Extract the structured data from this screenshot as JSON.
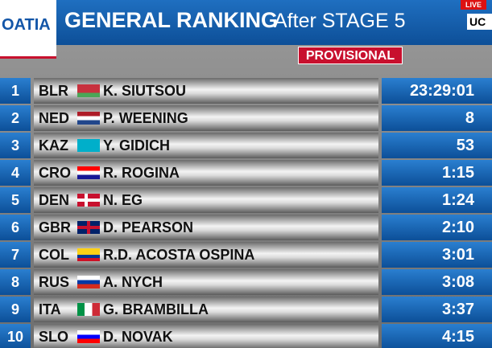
{
  "header": {
    "logo": "OATIA",
    "title": "GENERAL RANKING",
    "subtitle": "After STAGE 5",
    "live": "LIVE",
    "uci": "UC",
    "status": "PROVISIONAL"
  },
  "table": {
    "rows": [
      [
        "1",
        "BLR",
        "K. SIUTSOU",
        "23:29:01"
      ],
      [
        "2",
        "NED",
        "P. WEENING",
        "8"
      ],
      [
        "3",
        "KAZ",
        "Y. GIDICH",
        "53"
      ],
      [
        "4",
        "CRO",
        "R. ROGINA",
        "1:15"
      ],
      [
        "5",
        "DEN",
        "N. EG",
        "1:24"
      ],
      [
        "6",
        "GBR",
        "D. PEARSON",
        "2:10"
      ],
      [
        "7",
        "COL",
        "R.D. ACOSTA OSPINA",
        "3:01"
      ],
      [
        "8",
        "RUS",
        "A. NYCH",
        "3:08"
      ],
      [
        "9",
        "ITA",
        "G. BRAMBILLA",
        "3:37"
      ],
      [
        "10",
        "SLO",
        "D. NOVAK",
        "4:15"
      ]
    ]
  }
}
